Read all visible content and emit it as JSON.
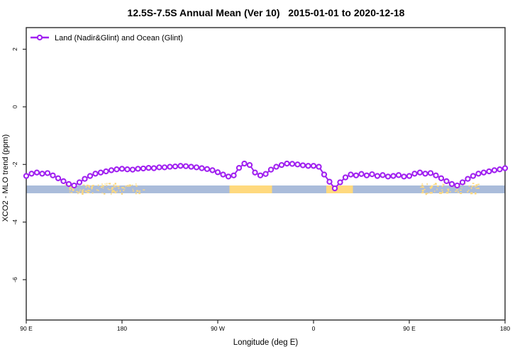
{
  "chart_data": {
    "type": "line",
    "title": "12.5S-7.5S Annual Mean (Ver 10)   2015-01-01 to 2020-12-18",
    "xlabel": "Longitude (deg E)",
    "ylabel": "XCO2 - MLO trend (ppm)",
    "xlim": [
      90,
      540
    ],
    "ylim": [
      -7.4,
      2.75
    ],
    "grid": false,
    "legend_position": "top-left",
    "x_ticks": {
      "positions": [
        90,
        180,
        270,
        360,
        450,
        540
      ],
      "labels": [
        "90 E",
        "180",
        "90 W",
        "0",
        "90 E",
        "180"
      ]
    },
    "y_ticks": {
      "positions": [
        2,
        0,
        -2,
        -4,
        -6
      ],
      "labels": [
        "2",
        "0",
        "-2",
        "-4",
        "-6"
      ]
    },
    "series": [
      {
        "name": "Land (Nadir&Glint) and Ocean (Glint)",
        "color": "#A020F0",
        "marker": "open-circle",
        "x": [
          90,
          95,
          100,
          105,
          110,
          115,
          120,
          125,
          130,
          135,
          140,
          145,
          150,
          155,
          160,
          165,
          170,
          175,
          180,
          185,
          190,
          195,
          200,
          205,
          210,
          215,
          220,
          225,
          230,
          235,
          240,
          245,
          250,
          255,
          260,
          265,
          270,
          275,
          280,
          285,
          290,
          295,
          300,
          305,
          310,
          315,
          320,
          325,
          330,
          335,
          340,
          345,
          350,
          355,
          360,
          365,
          370,
          375,
          380,
          385,
          390,
          395,
          400,
          405,
          410,
          415,
          420,
          425,
          430,
          435,
          440,
          445,
          450,
          455,
          460,
          465,
          470,
          475,
          480,
          485,
          490,
          495,
          500,
          505,
          510,
          515,
          520,
          525,
          530,
          535,
          540
        ],
        "y": [
          -2.4,
          -2.32,
          -2.28,
          -2.32,
          -2.3,
          -2.38,
          -2.48,
          -2.58,
          -2.68,
          -2.73,
          -2.62,
          -2.5,
          -2.4,
          -2.32,
          -2.28,
          -2.24,
          -2.2,
          -2.17,
          -2.15,
          -2.17,
          -2.18,
          -2.15,
          -2.14,
          -2.12,
          -2.13,
          -2.1,
          -2.1,
          -2.08,
          -2.07,
          -2.05,
          -2.06,
          -2.08,
          -2.1,
          -2.13,
          -2.16,
          -2.2,
          -2.27,
          -2.35,
          -2.42,
          -2.38,
          -2.12,
          -1.97,
          -2.02,
          -2.28,
          -2.38,
          -2.33,
          -2.18,
          -2.08,
          -2.02,
          -1.97,
          -1.98,
          -2.0,
          -2.03,
          -2.05,
          -2.05,
          -2.08,
          -2.35,
          -2.6,
          -2.83,
          -2.62,
          -2.45,
          -2.35,
          -2.38,
          -2.33,
          -2.38,
          -2.34,
          -2.4,
          -2.37,
          -2.42,
          -2.4,
          -2.37,
          -2.42,
          -2.4,
          -2.32,
          -2.28,
          -2.32,
          -2.3,
          -2.38,
          -2.48,
          -2.58,
          -2.68,
          -2.73,
          -2.62,
          -2.5,
          -2.4,
          -2.32,
          -2.28,
          -2.24,
          -2.2,
          -2.17,
          -2.13
        ]
      }
    ],
    "surface_strip": {
      "y_range": [
        -3.0,
        -2.73
      ],
      "ocean_color": "#AABCDA",
      "land_color": "#FFD97E",
      "land_segments_lon": [
        [
          281,
          321
        ],
        [
          372,
          397
        ]
      ],
      "island_speckle_regions_lon": [
        [
          125,
          200
        ],
        [
          460,
          515
        ]
      ]
    },
    "colors": {
      "axis": "#2a2a2a",
      "text": "#000000"
    }
  }
}
